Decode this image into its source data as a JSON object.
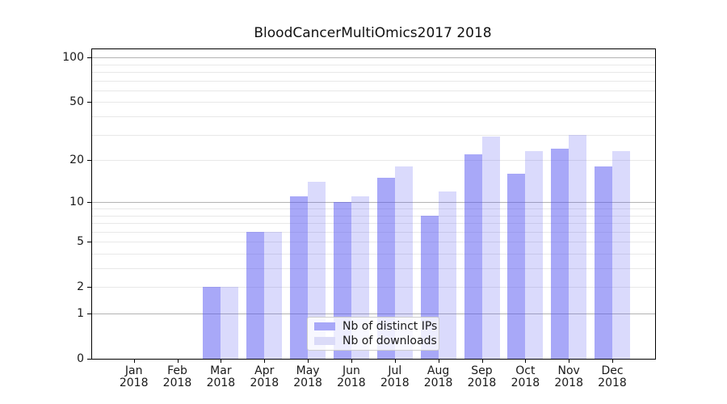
{
  "chart_data": {
    "type": "bar",
    "title": "BloodCancerMultiOmics2017 2018",
    "x_months": [
      "Jan",
      "Feb",
      "Mar",
      "Apr",
      "May",
      "Jun",
      "Jul",
      "Aug",
      "Sep",
      "Oct",
      "Nov",
      "Dec"
    ],
    "x_year": "2018",
    "series": [
      {
        "name": "Nb of distinct IPs",
        "values": [
          0,
          0,
          2,
          6,
          11,
          10,
          15,
          8,
          22,
          16,
          24,
          18
        ],
        "fill": "rgba(81,81,241,0.5)",
        "swatch_hex": "#a8a8f8"
      },
      {
        "name": "Nb of downloads",
        "values": [
          0,
          0,
          2,
          6,
          14,
          11,
          18,
          12,
          29,
          23,
          30,
          23
        ],
        "fill": "rgba(81,81,241,0.21)",
        "swatch_hex": "#dbdbf8"
      }
    ],
    "y_axis": {
      "scale": "log1p",
      "tick_labels": [
        0,
        1,
        2,
        5,
        10,
        20,
        50,
        100
      ],
      "major_gridlines": [
        1,
        10,
        100
      ],
      "minor_gridlines": [
        2,
        3,
        4,
        5,
        6,
        7,
        8,
        9,
        20,
        30,
        40,
        50,
        60,
        70,
        80,
        90
      ],
      "ylim": [
        0,
        113
      ]
    },
    "grid": true,
    "legend_position": "lower center"
  },
  "colors": {
    "bar_dark_over_white": "#a8a8f8",
    "bar_light_over_white": "#dbdbf8",
    "major_grid": "#b3b3b3",
    "minor_grid": "#e8e8e8",
    "axis": "#000000"
  }
}
